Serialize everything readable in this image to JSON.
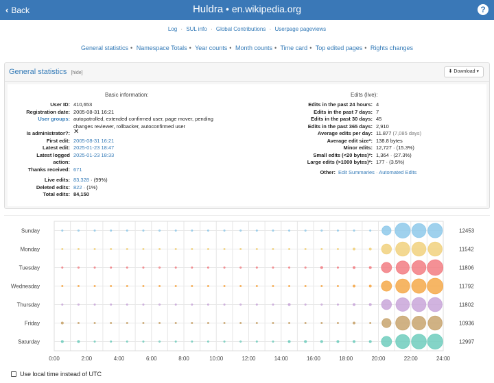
{
  "header": {
    "back_label": "Back",
    "username": "Huldra",
    "separator": "•",
    "wiki": "en.wikipedia.org",
    "help_label": "?"
  },
  "top_links": [
    "Log",
    "SUL info",
    "Global Contributions",
    "Userpage pageviews"
  ],
  "section_links": [
    "General statistics",
    "Namespace Totals",
    "Year counts",
    "Month counts",
    "Time card",
    "Top edited pages",
    "Rights changes"
  ],
  "panel": {
    "title": "General statistics",
    "hide_label": "[hide]",
    "download_label": "Download"
  },
  "basic": {
    "heading": "Basic information:",
    "user_id_label": "User ID:",
    "user_id": "410,653",
    "reg_label": "Registration date:",
    "reg": "2005-08-31 16:21",
    "groups_label": "User groups:",
    "groups_line1": "autopatrolled, extended confirmed user, page mover, pending",
    "groups_line2": "changes reviewer, rollbacker, autoconfirmed user",
    "admin_label": "Is administrator?:",
    "admin_value": "✕",
    "first_label": "First edit:",
    "first": "2005-08-31 16:21",
    "latest_label": "Latest edit:",
    "latest": "2025-01-23 18:47",
    "logged_label1": "Latest logged",
    "logged_label2": "action:",
    "logged": "2025-01-23 18:33",
    "thanks_label": "Thanks received:",
    "thanks": "671",
    "live_label": "Live edits:",
    "live": "83,328",
    "live_pct": "· (99%)",
    "deleted_label": "Deleted edits:",
    "deleted": "822",
    "deleted_pct": "· (1%)",
    "total_label": "Total edits:",
    "total": "84,150"
  },
  "edits": {
    "heading": "Edits (live):",
    "h24_label": "Edits in the past 24 hours:",
    "h24": "4",
    "d7_label": "Edits in the past 7 days:",
    "d7": "7",
    "d30_label": "Edits in the past 30 days:",
    "d30": "45",
    "d365_label": "Edits in the past 365 days:",
    "d365": "2,910",
    "avg_day_label": "Average edits per day:",
    "avg_day": "11.877",
    "avg_day_extra": "(7,085 days)",
    "avg_size_label": "Average edit size*:",
    "avg_size": "138.8 bytes",
    "minor_label": "Minor edits:",
    "minor": "12,727 · (15.3%)",
    "small_label": "Small edits (<20 bytes)*:",
    "small": "1,364 · (27.3%)",
    "large_label": "Large edits (>1000 bytes)*:",
    "large": "177 · (3.5%)",
    "other_label": "Other:",
    "other_link1": "Edit Summaries",
    "other_sep": "·",
    "other_link2": "Automated Edits"
  },
  "timecard": {
    "days": [
      "Sunday",
      "Monday",
      "Tuesday",
      "Wednesday",
      "Thursday",
      "Friday",
      "Saturday"
    ],
    "totals": [
      "12453",
      "11542",
      "11806",
      "11792",
      "11802",
      "10936",
      "12997"
    ],
    "x_ticks": [
      "0:00",
      "2:00",
      "4:00",
      "6:00",
      "8:00",
      "10:00",
      "12:00",
      "14:00",
      "16:00",
      "18:00",
      "20:00",
      "22:00",
      "24:00"
    ],
    "colors": [
      "#8ec9ea",
      "#f1d17e",
      "#f27c82",
      "#f5a94a",
      "#c9a6d9",
      "#c8a46e",
      "#6fcdbd"
    ],
    "hour_levels": [
      [
        0,
        0,
        0,
        0,
        0,
        0,
        0,
        0,
        0,
        0,
        0,
        0,
        0,
        0,
        0,
        0,
        0,
        0,
        0,
        0,
        0.55,
        0.92,
        0.85,
        0.88
      ],
      [
        0,
        0,
        0,
        0,
        0,
        0,
        0,
        0,
        0,
        0,
        0,
        0,
        0,
        0,
        0,
        0,
        0,
        0,
        0.05,
        0.05,
        0.6,
        0.85,
        0.85,
        0.85
      ],
      [
        0,
        0,
        0,
        0,
        0,
        0,
        0,
        0,
        0,
        0,
        0,
        0,
        0,
        0,
        0,
        0,
        0.05,
        0,
        0.05,
        0.05,
        0.62,
        0.8,
        0.85,
        0.95
      ],
      [
        0,
        0,
        0,
        0,
        0,
        0,
        0,
        0,
        0,
        0,
        0,
        0,
        0,
        0,
        0,
        0,
        0,
        0,
        0.05,
        0.05,
        0.62,
        0.85,
        0.87,
        0.95
      ],
      [
        0,
        0,
        0,
        0,
        0,
        0,
        0,
        0,
        0,
        0,
        0,
        0,
        0,
        0,
        0.05,
        0,
        0,
        0,
        0.05,
        0.05,
        0.6,
        0.82,
        0.85,
        0.85
      ],
      [
        0.05,
        0,
        0,
        0,
        0,
        0,
        0,
        0,
        0,
        0,
        0,
        0,
        0,
        0,
        0,
        0,
        0,
        0,
        0.05,
        0,
        0.55,
        0.85,
        0.83,
        0.85
      ],
      [
        0.05,
        0.05,
        0,
        0,
        0,
        0,
        0,
        0,
        0,
        0,
        0,
        0,
        0,
        0,
        0.05,
        0.05,
        0.05,
        0.05,
        0.1,
        0.1,
        0.62,
        0.85,
        0.9,
        0.92
      ]
    ]
  },
  "local_time_label": "Use local time instead of UTC"
}
